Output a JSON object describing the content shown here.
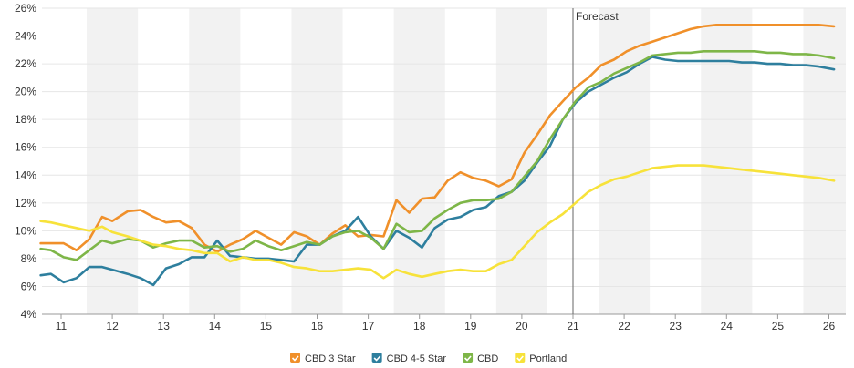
{
  "chart_data": {
    "type": "line",
    "ylim": [
      4,
      26
    ],
    "yticks": [
      "4%",
      "6%",
      "8%",
      "10%",
      "12%",
      "14%",
      "16%",
      "18%",
      "20%",
      "22%",
      "24%",
      "26%"
    ],
    "xticks": [
      "11",
      "12",
      "13",
      "14",
      "15",
      "16",
      "17",
      "18",
      "19",
      "20",
      "21",
      "22",
      "23",
      "24",
      "25",
      "26"
    ],
    "xlim": [
      10.5,
      26.2
    ],
    "forecast_label": "Forecast",
    "forecast_x": 21,
    "grid": true,
    "legend_position": "bottom-center",
    "x": [
      10.6,
      10.8,
      11.05,
      11.3,
      11.55,
      11.8,
      12.0,
      12.3,
      12.55,
      12.8,
      13.05,
      13.3,
      13.55,
      13.8,
      14.05,
      14.3,
      14.55,
      14.8,
      15.05,
      15.3,
      15.55,
      15.8,
      16.05,
      16.3,
      16.55,
      16.8,
      17.05,
      17.3,
      17.55,
      17.8,
      18.05,
      18.3,
      18.55,
      18.8,
      19.05,
      19.3,
      19.55,
      19.8,
      20.05,
      20.3,
      20.55,
      20.8,
      21.05,
      21.3,
      21.55,
      21.8,
      22.05,
      22.3,
      22.55,
      22.8,
      23.05,
      23.3,
      23.55,
      23.8,
      24.05,
      24.3,
      24.55,
      24.8,
      25.05,
      25.3,
      25.55,
      25.8,
      26.1
    ],
    "series": [
      {
        "name": "CBD 3 Star",
        "color": "#F0902A",
        "values": [
          9.1,
          9.1,
          9.1,
          8.6,
          9.4,
          11.0,
          10.7,
          11.4,
          11.5,
          11.0,
          10.6,
          10.7,
          10.2,
          9.0,
          8.5,
          9.0,
          9.4,
          10.0,
          9.5,
          9.0,
          9.9,
          9.6,
          9.0,
          9.8,
          10.4,
          9.6,
          9.7,
          9.6,
          12.2,
          11.3,
          12.3,
          12.4,
          13.6,
          14.2,
          13.8,
          13.6,
          13.2,
          13.7,
          15.6,
          16.9,
          18.3,
          19.3,
          20.3,
          21.0,
          21.9,
          22.3,
          22.9,
          23.3,
          23.6,
          23.9,
          24.2,
          24.5,
          24.7,
          24.8,
          24.8,
          24.8,
          24.8,
          24.8,
          24.8,
          24.8,
          24.8,
          24.8,
          24.7
        ]
      },
      {
        "name": "CBD 4-5 Star",
        "color": "#2E7F9E",
        "values": [
          6.8,
          6.9,
          6.3,
          6.6,
          7.4,
          7.4,
          7.2,
          6.9,
          6.6,
          6.1,
          7.3,
          7.6,
          8.1,
          8.1,
          9.3,
          8.2,
          8.1,
          8.0,
          8.0,
          7.9,
          7.8,
          9.0,
          9.0,
          9.6,
          10.0,
          11.0,
          9.6,
          8.7,
          10.0,
          9.5,
          8.8,
          10.2,
          10.8,
          11.0,
          11.5,
          11.7,
          12.5,
          12.8,
          13.6,
          14.9,
          16.1,
          18.0,
          19.2,
          20.0,
          20.5,
          21.0,
          21.4,
          22.0,
          22.5,
          22.3,
          22.2,
          22.2,
          22.2,
          22.2,
          22.2,
          22.1,
          22.1,
          22.0,
          22.0,
          21.9,
          21.9,
          21.8,
          21.6
        ]
      },
      {
        "name": "CBD",
        "color": "#7EB648",
        "values": [
          8.7,
          8.6,
          8.1,
          7.9,
          8.6,
          9.3,
          9.1,
          9.4,
          9.3,
          8.8,
          9.1,
          9.3,
          9.3,
          8.8,
          8.9,
          8.5,
          8.7,
          9.3,
          8.9,
          8.6,
          8.9,
          9.2,
          9.0,
          9.6,
          9.9,
          10.0,
          9.5,
          8.7,
          10.5,
          9.9,
          10.0,
          10.9,
          11.5,
          12.0,
          12.2,
          12.2,
          12.3,
          12.8,
          13.9,
          15.0,
          16.6,
          18.0,
          19.3,
          20.3,
          20.7,
          21.3,
          21.7,
          22.1,
          22.6,
          22.7,
          22.8,
          22.8,
          22.9,
          22.9,
          22.9,
          22.9,
          22.9,
          22.8,
          22.8,
          22.7,
          22.7,
          22.6,
          22.4
        ]
      },
      {
        "name": "Portland",
        "color": "#F7E23A",
        "values": [
          10.7,
          10.6,
          10.4,
          10.2,
          10.0,
          10.3,
          9.9,
          9.6,
          9.3,
          9.0,
          8.9,
          8.7,
          8.6,
          8.4,
          8.4,
          7.8,
          8.1,
          7.9,
          7.9,
          7.7,
          7.4,
          7.3,
          7.1,
          7.1,
          7.2,
          7.3,
          7.2,
          6.6,
          7.2,
          6.9,
          6.7,
          6.9,
          7.1,
          7.2,
          7.1,
          7.1,
          7.6,
          7.9,
          8.9,
          9.9,
          10.6,
          11.2,
          12.0,
          12.8,
          13.3,
          13.7,
          13.9,
          14.2,
          14.5,
          14.6,
          14.7,
          14.7,
          14.7,
          14.6,
          14.5,
          14.4,
          14.3,
          14.2,
          14.1,
          14.0,
          13.9,
          13.8,
          13.6
        ]
      }
    ]
  }
}
